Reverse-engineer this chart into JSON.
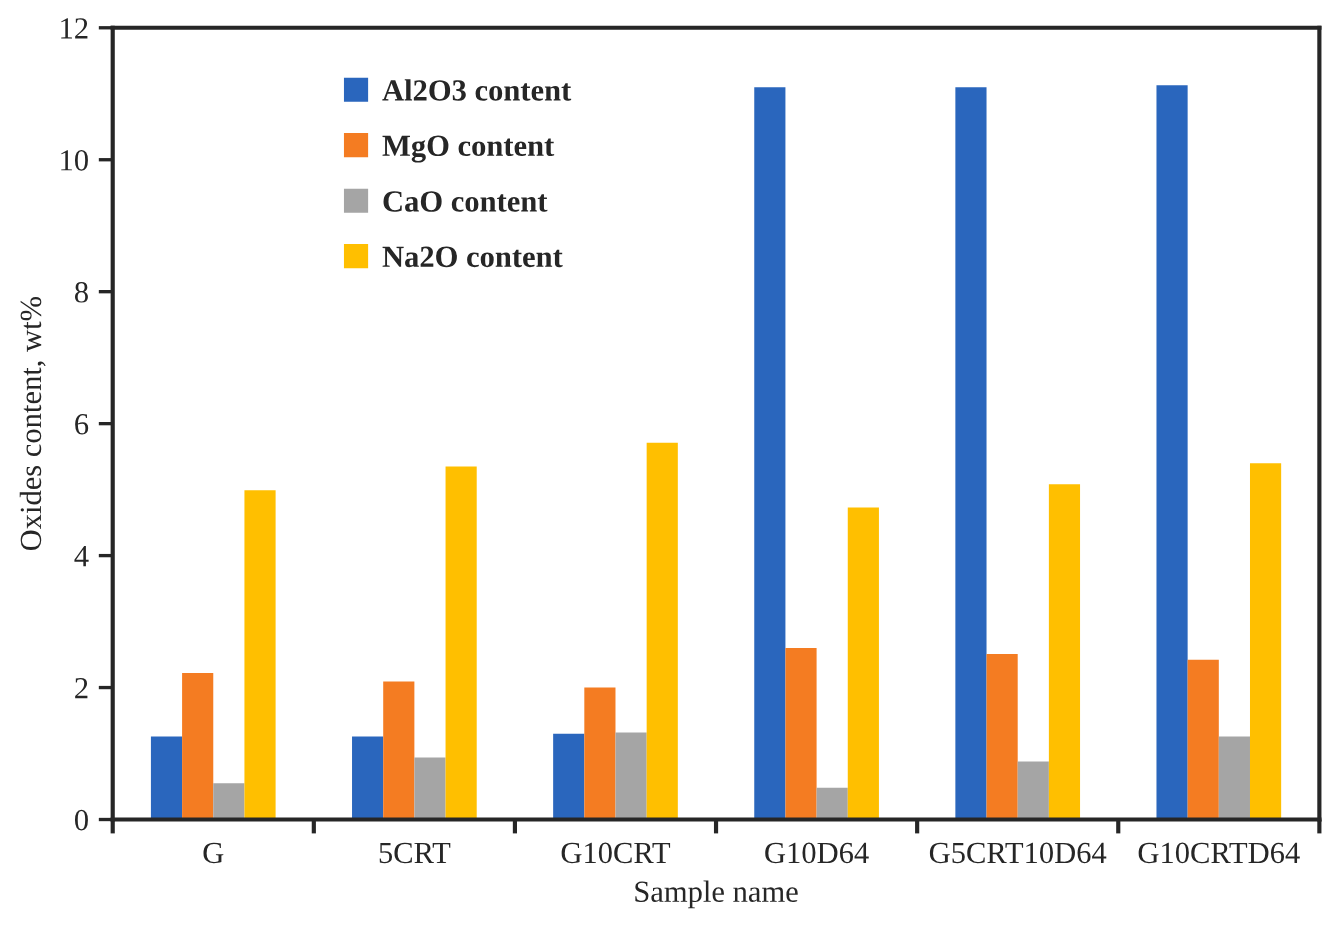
{
  "chart_data": {
    "type": "bar",
    "xlabel": "Sample name",
    "ylabel": "Oxides content, wt%",
    "categories": [
      "G",
      "5CRT",
      "G10CRT",
      "G10D64",
      "G5CRT10D64",
      "G10CRTD64"
    ],
    "series": [
      {
        "name": "Al2O3 content",
        "color": "#2a66bd",
        "values": [
          1.26,
          1.26,
          1.3,
          11.1,
          11.1,
          11.13
        ]
      },
      {
        "name": "MgO content",
        "color": "#f47c22",
        "values": [
          2.22,
          2.09,
          2.0,
          2.6,
          2.51,
          2.42
        ]
      },
      {
        "name": "CaO content",
        "color": "#a5a5a5",
        "values": [
          0.55,
          0.94,
          1.32,
          0.48,
          0.88,
          1.26
        ]
      },
      {
        "name": "Na2O content",
        "color": "#ffbf00",
        "values": [
          4.99,
          5.35,
          5.71,
          4.73,
          5.08,
          5.4
        ]
      }
    ],
    "ylim": [
      0,
      12
    ],
    "yticks": [
      0,
      2,
      4,
      6,
      8,
      10,
      12
    ],
    "grid": false,
    "legend": "top left"
  }
}
